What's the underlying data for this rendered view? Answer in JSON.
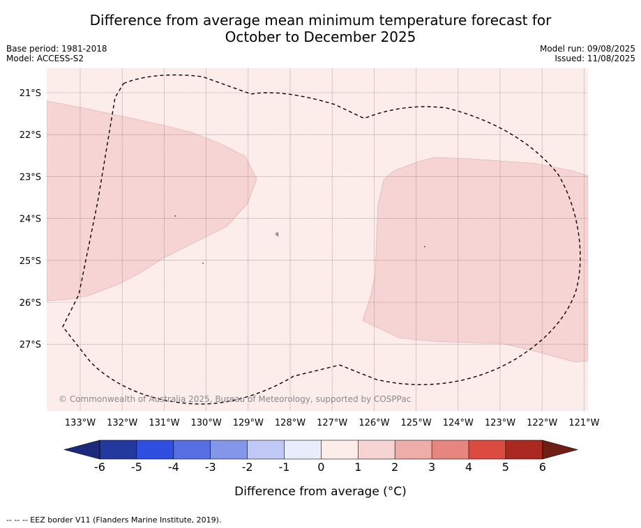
{
  "title_line1": "Difference from average mean minimum temperature forecast for",
  "title_line2": "October to December 2025",
  "base_period": "Base period: 1981-2018",
  "model": "Model: ACCESS-S2",
  "model_run": "Model run: 09/08/2025",
  "issued": "Issued: 11/08/2025",
  "copyright": "© Commonwealth of Australia 2025, Bureau of Meteorology, supported by COSPPac",
  "lat_labels": [
    "21°S",
    "22°S",
    "23°S",
    "24°S",
    "25°S",
    "26°S",
    "27°S"
  ],
  "lon_labels": [
    "133°W",
    "132°W",
    "131°W",
    "130°W",
    "129°W",
    "128°W",
    "127°W",
    "126°W",
    "125°W",
    "124°W",
    "123°W",
    "122°W",
    "121°W"
  ],
  "colorbar": {
    "ticks": [
      "-6",
      "-5",
      "-4",
      "-3",
      "-2",
      "-1",
      "0",
      "1",
      "2",
      "3",
      "4",
      "5",
      "6"
    ],
    "colors": [
      "#24399e",
      "#2f4fe0",
      "#586fe3",
      "#8496ea",
      "#c0c9f5",
      "#e9ecfb",
      "#fcecea",
      "#f5d4d3",
      "#eeada8",
      "#e8857e",
      "#dc4b40",
      "#aa2820"
    ],
    "under_color": "#1b2a7a",
    "over_color": "#6e1e14",
    "label": "Difference from average (°C)"
  },
  "map_colors": {
    "background": "#fcecea",
    "anomaly_1_2": "#f5d4d3"
  },
  "footnote": "--  --  -- EEZ border V11 (Flanders Marine Institute, 2019)."
}
